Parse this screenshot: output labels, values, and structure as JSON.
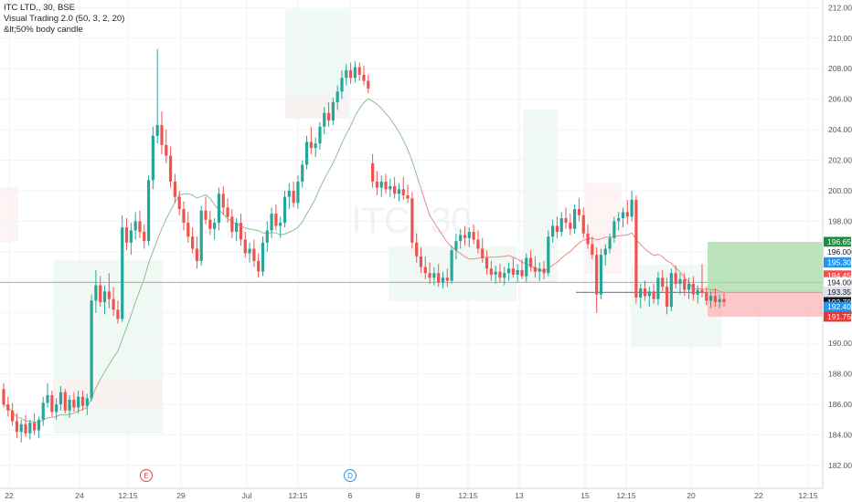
{
  "chart_data": {
    "type": "candlestick",
    "legend": {
      "symbol_line": "ITC LTD., 30, BSE",
      "indicator_1": "Visual Trading 2.0 (50, 3, 2, 20)",
      "indicator_2": "&lt;50% body candle"
    },
    "watermark": "ITC, 30",
    "y_axis": {
      "min": 180.5,
      "max": 212.5,
      "ticks": [
        "182.00",
        "184.00",
        "186.00",
        "188.00",
        "190.00",
        "192.00",
        "194.00",
        "196.00",
        "198.00",
        "200.00",
        "202.00",
        "204.00",
        "206.00",
        "208.00",
        "210.00",
        "212.00"
      ]
    },
    "x_axis": {
      "tick_labels": [
        "22",
        "24",
        "12:15",
        "29",
        "Jul",
        "12:15",
        "6",
        "8",
        "12:15",
        "13",
        "15",
        "12:15",
        "20",
        "22",
        "12:15"
      ]
    },
    "event_markers": [
      {
        "label": "E",
        "color": "#e0455a"
      },
      {
        "label": "D",
        "color": "#2196f3"
      }
    ],
    "price_labels": [
      {
        "value": "196.65",
        "color": "#1e8e3e"
      },
      {
        "value": "196.00",
        "color": "#ffffff"
      },
      {
        "value": "195.30",
        "color": "#2196f3"
      },
      {
        "value": "194.45",
        "color": "#ef5350"
      },
      {
        "value": "194.00",
        "color": "#ffffff"
      },
      {
        "value": "193.35",
        "color": "#e0e3eb"
      },
      {
        "value": "192.70",
        "color": "#131722"
      },
      {
        "value": "192.40",
        "color": "#2196f3"
      },
      {
        "value": "191.75",
        "color": "#e53935"
      }
    ],
    "colors": {
      "up": "#26a69a",
      "down": "#ef5350",
      "ma_line_early": "#8fbf95",
      "ma_line_late": "#e88a8a",
      "channel_line": "#9ad6e0",
      "target_zone": "#a5dba5",
      "stop_zone": "#f9b4b4"
    },
    "candles": [
      [
        187.0,
        187.4,
        185.8,
        186.0
      ],
      [
        186.0,
        186.5,
        185.2,
        185.6
      ],
      [
        185.6,
        186.1,
        184.6,
        184.9
      ],
      [
        184.9,
        185.4,
        183.8,
        184.2
      ],
      [
        184.2,
        185.0,
        183.5,
        184.7
      ],
      [
        184.7,
        185.3,
        183.9,
        184.1
      ],
      [
        184.1,
        185.0,
        183.7,
        184.8
      ],
      [
        184.8,
        185.4,
        184.0,
        184.3
      ],
      [
        184.3,
        185.2,
        183.8,
        185.0
      ],
      [
        185.0,
        186.5,
        184.6,
        186.1
      ],
      [
        186.1,
        187.4,
        185.8,
        186.6
      ],
      [
        186.6,
        186.9,
        185.2,
        185.5
      ],
      [
        185.5,
        186.4,
        185.0,
        186.0
      ],
      [
        186.0,
        187.2,
        185.6,
        186.8
      ],
      [
        186.8,
        187.0,
        185.4,
        185.6
      ],
      [
        185.6,
        186.6,
        185.1,
        186.3
      ],
      [
        186.3,
        186.8,
        185.5,
        185.8
      ],
      [
        185.8,
        186.9,
        185.4,
        186.5
      ],
      [
        186.5,
        186.9,
        185.6,
        185.9
      ],
      [
        185.9,
        186.7,
        185.3,
        186.4
      ],
      [
        186.4,
        193.2,
        186.2,
        192.8
      ],
      [
        192.8,
        194.8,
        192.0,
        193.8
      ],
      [
        193.8,
        194.4,
        192.4,
        192.7
      ],
      [
        192.7,
        193.8,
        191.9,
        193.4
      ],
      [
        193.4,
        194.6,
        192.3,
        192.9
      ],
      [
        192.9,
        193.7,
        191.8,
        192.2
      ],
      [
        192.2,
        192.8,
        191.3,
        191.6
      ],
      [
        191.6,
        198.4,
        191.4,
        197.6
      ],
      [
        197.6,
        198.2,
        196.1,
        196.6
      ],
      [
        196.6,
        197.9,
        195.8,
        197.4
      ],
      [
        197.4,
        198.6,
        196.8,
        198.0
      ],
      [
        198.0,
        198.7,
        196.9,
        197.3
      ],
      [
        197.3,
        197.8,
        196.2,
        196.7
      ],
      [
        196.7,
        201.0,
        196.4,
        200.7
      ],
      [
        200.7,
        204.2,
        200.1,
        203.6
      ],
      [
        203.6,
        209.3,
        203.1,
        204.3
      ],
      [
        204.3,
        205.2,
        202.4,
        203.0
      ],
      [
        203.0,
        204.0,
        201.8,
        202.3
      ],
      [
        202.3,
        202.9,
        200.2,
        200.6
      ],
      [
        200.6,
        201.1,
        199.2,
        199.6
      ],
      [
        199.6,
        200.0,
        198.4,
        198.8
      ],
      [
        198.8,
        199.3,
        197.4,
        197.9
      ],
      [
        197.9,
        198.6,
        196.6,
        197.0
      ],
      [
        197.0,
        197.6,
        195.9,
        196.2
      ],
      [
        196.2,
        197.0,
        194.9,
        195.4
      ],
      [
        195.4,
        199.0,
        195.1,
        198.7
      ],
      [
        198.7,
        199.6,
        197.8,
        198.1
      ],
      [
        198.1,
        198.7,
        197.1,
        197.5
      ],
      [
        197.5,
        198.2,
        196.8,
        197.9
      ],
      [
        197.9,
        200.2,
        197.4,
        199.8
      ],
      [
        199.8,
        200.3,
        198.4,
        198.9
      ],
      [
        198.9,
        199.5,
        197.9,
        198.3
      ],
      [
        198.3,
        198.8,
        196.9,
        197.3
      ],
      [
        197.3,
        198.2,
        196.7,
        197.9
      ],
      [
        197.9,
        198.5,
        196.4,
        196.8
      ],
      [
        196.8,
        197.3,
        195.6,
        195.9
      ],
      [
        195.9,
        196.6,
        195.3,
        196.2
      ],
      [
        196.2,
        196.8,
        195.0,
        195.4
      ],
      [
        195.4,
        195.9,
        194.3,
        194.7
      ],
      [
        194.7,
        197.0,
        194.4,
        196.6
      ],
      [
        196.6,
        198.0,
        196.0,
        197.4
      ],
      [
        197.4,
        198.9,
        196.9,
        198.5
      ],
      [
        198.5,
        199.1,
        197.4,
        197.7
      ],
      [
        197.7,
        198.3,
        196.9,
        197.9
      ],
      [
        197.9,
        200.0,
        197.6,
        199.6
      ],
      [
        199.6,
        200.5,
        198.8,
        200.0
      ],
      [
        200.0,
        200.6,
        198.9,
        199.2
      ],
      [
        199.2,
        201.0,
        198.8,
        200.6
      ],
      [
        200.6,
        202.0,
        200.2,
        201.7
      ],
      [
        201.7,
        203.6,
        201.4,
        203.2
      ],
      [
        203.2,
        204.2,
        202.4,
        202.8
      ],
      [
        202.8,
        203.5,
        202.2,
        203.1
      ],
      [
        203.1,
        204.5,
        202.7,
        204.2
      ],
      [
        204.2,
        205.5,
        203.7,
        205.1
      ],
      [
        205.1,
        205.8,
        204.2,
        204.6
      ],
      [
        204.6,
        206.1,
        204.3,
        205.8
      ],
      [
        205.8,
        206.9,
        205.3,
        206.5
      ],
      [
        206.5,
        207.9,
        206.0,
        207.4
      ],
      [
        207.4,
        208.3,
        206.9,
        207.9
      ],
      [
        207.9,
        208.4,
        207.0,
        207.4
      ],
      [
        207.4,
        208.5,
        207.1,
        208.1
      ],
      [
        208.1,
        208.4,
        207.2,
        207.6
      ],
      [
        207.6,
        208.2,
        206.9,
        207.2
      ],
      [
        207.2,
        207.6,
        206.4,
        206.7
      ],
      [
        201.8,
        202.4,
        200.2,
        200.6
      ],
      [
        200.6,
        201.3,
        199.7,
        200.2
      ],
      [
        200.2,
        201.0,
        199.6,
        200.6
      ],
      [
        200.6,
        201.1,
        199.8,
        200.1
      ],
      [
        200.1,
        200.8,
        199.6,
        200.3
      ],
      [
        200.3,
        200.9,
        199.5,
        199.8
      ],
      [
        199.8,
        200.5,
        199.3,
        200.1
      ],
      [
        200.1,
        200.9,
        199.4,
        199.7
      ],
      [
        199.7,
        200.4,
        199.2,
        199.5
      ],
      [
        199.5,
        199.9,
        196.2,
        196.6
      ],
      [
        196.6,
        197.2,
        195.3,
        195.7
      ],
      [
        195.7,
        196.3,
        194.6,
        195.0
      ],
      [
        195.0,
        195.7,
        194.2,
        194.6
      ],
      [
        194.6,
        195.3,
        193.9,
        194.3
      ],
      [
        194.3,
        195.0,
        193.8,
        194.6
      ],
      [
        194.6,
        195.2,
        193.7,
        194.0
      ],
      [
        194.0,
        194.7,
        193.6,
        194.3
      ],
      [
        194.3,
        194.9,
        193.7,
        194.1
      ],
      [
        194.1,
        196.4,
        193.9,
        196.1
      ],
      [
        196.1,
        197.2,
        195.5,
        196.7
      ],
      [
        196.7,
        197.5,
        196.2,
        197.1
      ],
      [
        197.1,
        197.7,
        196.4,
        196.9
      ],
      [
        196.9,
        197.6,
        196.3,
        197.3
      ],
      [
        197.3,
        197.8,
        196.5,
        196.8
      ],
      [
        196.8,
        197.4,
        195.9,
        196.2
      ],
      [
        196.2,
        196.9,
        195.3,
        195.6
      ],
      [
        195.6,
        196.1,
        194.5,
        194.9
      ],
      [
        194.9,
        195.4,
        194.1,
        194.5
      ],
      [
        194.5,
        195.1,
        193.9,
        194.7
      ],
      [
        194.7,
        195.2,
        194.0,
        194.3
      ],
      [
        194.3,
        195.0,
        193.8,
        194.6
      ],
      [
        194.6,
        195.3,
        194.1,
        194.9
      ],
      [
        194.9,
        195.6,
        194.3,
        194.5
      ],
      [
        194.5,
        195.2,
        194.0,
        194.8
      ],
      [
        194.8,
        195.5,
        194.2,
        194.4
      ],
      [
        194.4,
        195.9,
        194.0,
        195.6
      ],
      [
        195.6,
        196.1,
        194.7,
        195.0
      ],
      [
        195.0,
        195.7,
        194.3,
        194.7
      ],
      [
        194.7,
        195.3,
        194.1,
        194.9
      ],
      [
        194.9,
        195.4,
        194.2,
        194.6
      ],
      [
        194.6,
        197.4,
        194.4,
        197.0
      ],
      [
        197.0,
        198.1,
        196.6,
        197.7
      ],
      [
        197.7,
        198.3,
        196.9,
        197.3
      ],
      [
        197.3,
        198.6,
        197.0,
        198.2
      ],
      [
        198.2,
        198.9,
        197.5,
        197.9
      ],
      [
        197.9,
        198.5,
        197.1,
        197.5
      ],
      [
        197.5,
        199.1,
        197.2,
        198.8
      ],
      [
        198.8,
        199.5,
        198.0,
        198.4
      ],
      [
        198.4,
        198.9,
        196.9,
        197.2
      ],
      [
        197.2,
        197.8,
        196.2,
        196.5
      ],
      [
        196.5,
        197.0,
        195.5,
        195.8
      ],
      [
        195.8,
        196.3,
        192.0,
        193.2
      ],
      [
        193.2,
        196.2,
        192.9,
        195.8
      ],
      [
        195.8,
        196.5,
        195.1,
        196.2
      ],
      [
        196.2,
        197.2,
        195.9,
        196.9
      ],
      [
        196.9,
        198.3,
        196.6,
        198.0
      ],
      [
        198.0,
        198.6,
        197.4,
        198.2
      ],
      [
        198.2,
        198.9,
        197.6,
        198.6
      ],
      [
        198.6,
        199.4,
        197.8,
        198.3
      ],
      [
        198.3,
        200.0,
        198.0,
        199.4
      ],
      [
        199.4,
        199.7,
        192.6,
        193.0
      ],
      [
        193.0,
        193.9,
        192.3,
        193.6
      ],
      [
        193.6,
        194.1,
        192.8,
        193.1
      ],
      [
        193.1,
        193.7,
        192.4,
        193.4
      ],
      [
        193.4,
        193.9,
        192.6,
        192.9
      ],
      [
        192.9,
        194.7,
        192.5,
        194.3
      ],
      [
        194.3,
        194.8,
        193.4,
        193.7
      ],
      [
        193.7,
        194.3,
        191.9,
        192.4
      ],
      [
        192.4,
        194.9,
        192.1,
        194.6
      ],
      [
        194.6,
        195.1,
        193.6,
        193.9
      ],
      [
        193.9,
        194.6,
        193.2,
        194.2
      ],
      [
        194.2,
        194.6,
        193.1,
        193.5
      ],
      [
        193.5,
        194.3,
        192.9,
        193.9
      ],
      [
        193.9,
        194.4,
        192.8,
        193.2
      ],
      [
        193.2,
        193.8,
        192.6,
        193.5
      ],
      [
        193.5,
        195.2,
        193.0,
        193.3
      ],
      [
        193.3,
        193.7,
        192.5,
        192.8
      ],
      [
        192.8,
        193.4,
        192.3,
        193.1
      ],
      [
        193.1,
        193.6,
        192.4,
        192.7
      ],
      [
        192.7,
        193.2,
        192.3,
        192.9
      ],
      [
        192.9,
        193.3,
        192.4,
        192.7
      ]
    ]
  }
}
